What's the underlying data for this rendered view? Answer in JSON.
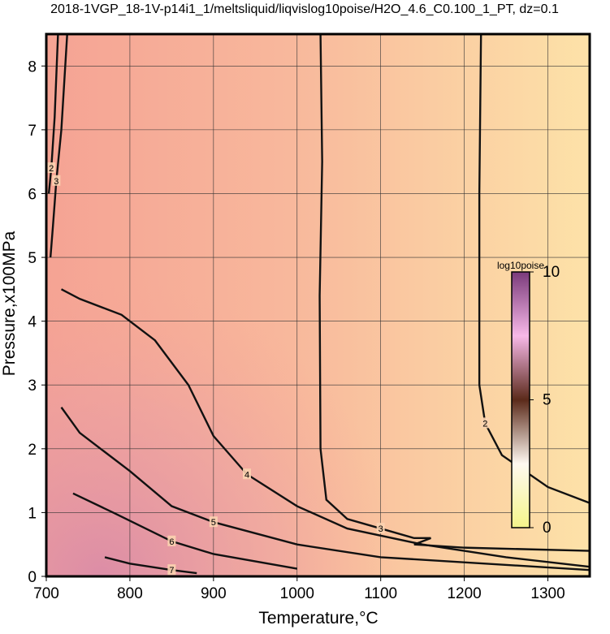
{
  "chart_data": {
    "type": "contour",
    "title": "2018-1VGP_18-1V-p14i1_1/meltsliquid/liqvislog10poise/H2O_4.6_C0.100_1_PT, dz=0.1",
    "x_label": "Temperature,°C",
    "y_label": "Pressure,x100MPa",
    "xlim": [
      700,
      1350
    ],
    "ylim": [
      0,
      8.5
    ],
    "xticks": [
      700,
      800,
      900,
      1000,
      1100,
      1200,
      1300
    ],
    "yticks": [
      0,
      1,
      2,
      3,
      4,
      5,
      6,
      7,
      8
    ],
    "grid": true,
    "colorbar": {
      "label": "log10poise",
      "lim": [
        0,
        10
      ],
      "ticks": [
        0,
        5,
        10
      ]
    },
    "contours": [
      {
        "level": 4,
        "x": [
          718,
          740,
          790,
          830,
          870,
          900,
          940,
          1000,
          1060,
          1150,
          1250,
          1350
        ],
        "y": [
          4.5,
          4.35,
          4.1,
          3.7,
          3.0,
          2.2,
          1.6,
          1.1,
          0.75,
          0.5,
          0.3,
          0.15
        ]
      },
      {
        "level": 3,
        "x": [
          1028,
          1030,
          1027,
          1028,
          1035,
          1060,
          1100,
          1140,
          1160,
          1140,
          1200,
          1350
        ],
        "y": [
          8.5,
          6.5,
          4.4,
          2.0,
          1.2,
          0.9,
          0.75,
          0.6,
          0.6,
          0.5,
          0.45,
          0.4
        ]
      },
      {
        "level": 2,
        "x": [
          1220,
          1218,
          1218,
          1225,
          1245,
          1300,
          1350
        ],
        "y": [
          8.5,
          6.0,
          3.0,
          2.4,
          1.9,
          1.4,
          1.15
        ]
      },
      {
        "level": 5,
        "x": [
          718,
          740,
          800,
          850,
          900,
          1000,
          1100,
          1350
        ],
        "y": [
          2.65,
          2.25,
          1.65,
          1.1,
          0.85,
          0.5,
          0.3,
          0.1
        ]
      },
      {
        "level": 6,
        "x": [
          732,
          780,
          850,
          900,
          1000
        ],
        "y": [
          1.3,
          1.0,
          0.55,
          0.35,
          0.12
        ]
      },
      {
        "level": 7,
        "x": [
          770,
          800,
          850,
          880
        ],
        "y": [
          0.3,
          0.2,
          0.1,
          0.05
        ]
      },
      {
        "level": 3,
        "x": [
          725,
          718,
          712,
          708,
          705
        ],
        "y": [
          8.5,
          7.0,
          6.2,
          5.5,
          5.0
        ]
      },
      {
        "level": 2,
        "x": [
          714,
          710,
          706,
          703
        ],
        "y": [
          8.5,
          7.2,
          6.4,
          6.0
        ]
      }
    ]
  }
}
